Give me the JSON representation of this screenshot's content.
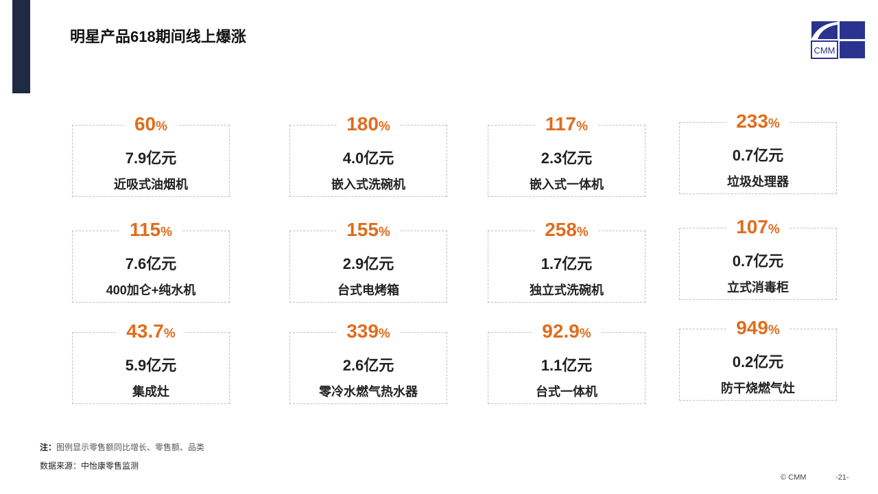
{
  "title": "明星产品618期间线上爆涨",
  "logo_text": "CMM",
  "percent_sign": "%",
  "cards": [
    {
      "pct": "60",
      "value": "7.9亿元",
      "name": "近吸式油烟机"
    },
    {
      "pct": "180",
      "value": "4.0亿元",
      "name": "嵌入式洗碗机"
    },
    {
      "pct": "117",
      "value": "2.3亿元",
      "name": "嵌入式一体机"
    },
    {
      "pct": "233",
      "value": "0.7亿元",
      "name": "垃圾处理器"
    },
    {
      "pct": "115",
      "value": "7.6亿元",
      "name": "400加仑+纯水机"
    },
    {
      "pct": "155",
      "value": "2.9亿元",
      "name": "台式电烤箱"
    },
    {
      "pct": "258",
      "value": "1.7亿元",
      "name": "独立式洗碗机"
    },
    {
      "pct": "107",
      "value": "0.7亿元",
      "name": "立式消毒柜"
    },
    {
      "pct": "43.7",
      "value": "5.9亿元",
      "name": "集成灶"
    },
    {
      "pct": "339",
      "value": "2.6亿元",
      "name": "零冷水燃气热水器"
    },
    {
      "pct": "92.9",
      "value": "1.1亿元",
      "name": "台式一体机"
    },
    {
      "pct": "949",
      "value": "0.2亿元",
      "name": "防干烧燃气灶"
    }
  ],
  "note_label": "注：",
  "note": "图例显示零售额同比增长、零售额、品类",
  "source": "数据来源：中怡康零售监测",
  "copyright": "© CMM",
  "page": "-21-"
}
